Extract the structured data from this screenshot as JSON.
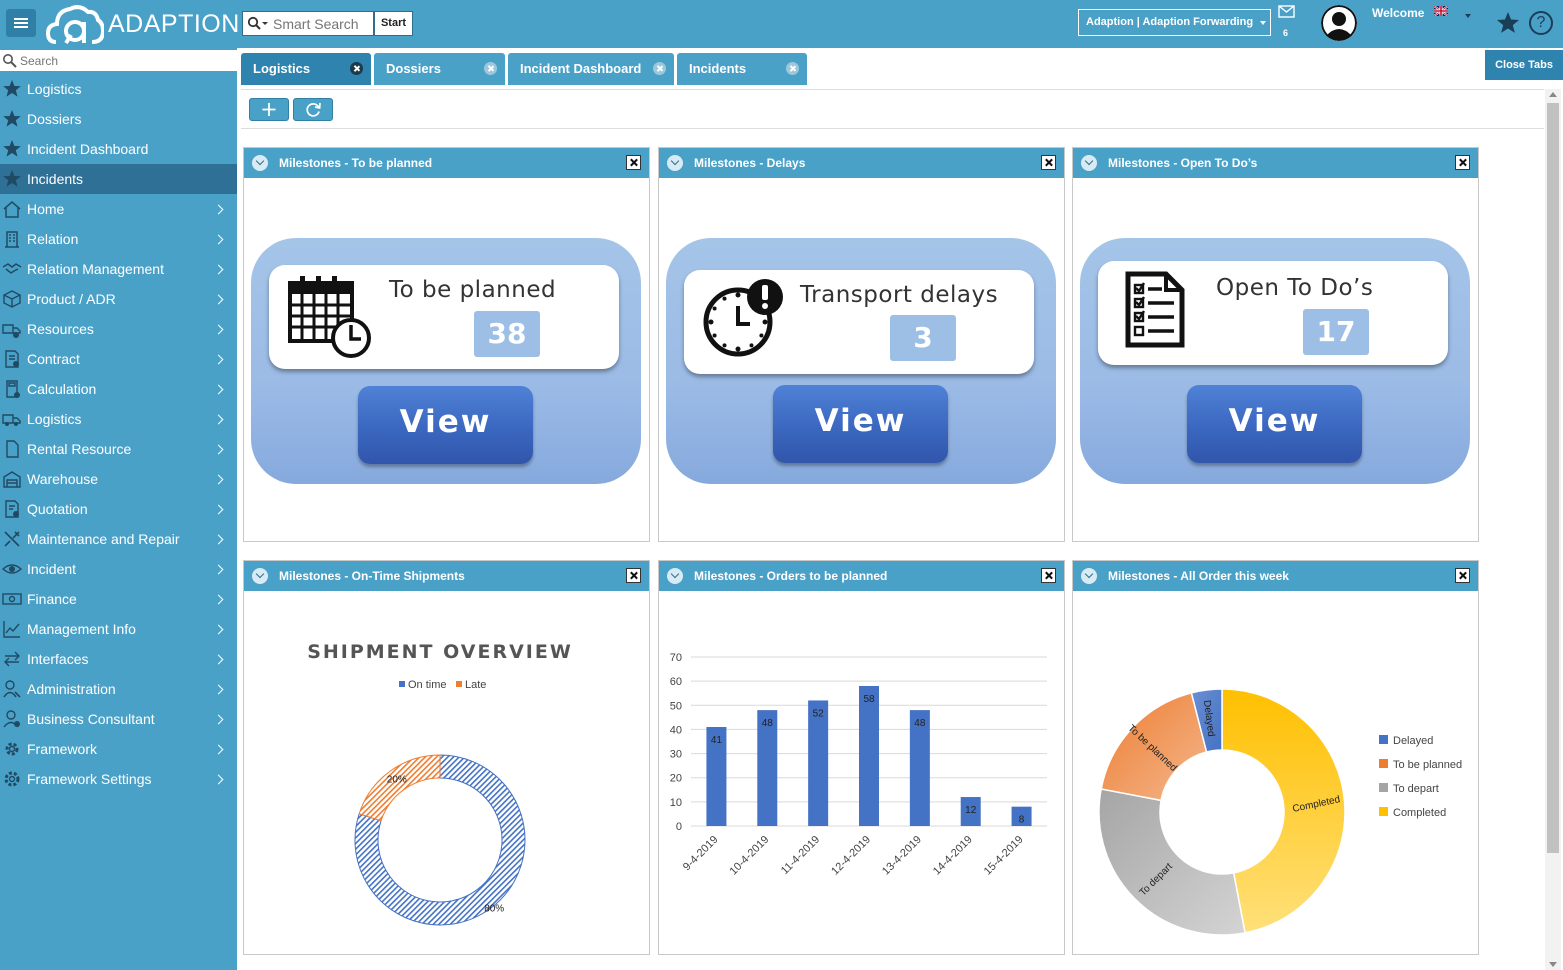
{
  "header": {
    "logo_text": "ADAPTION",
    "search_placeholder": "Smart Search",
    "start_label": "Start",
    "org_label": "Adaption | Adaption Forwarding",
    "mail_count": "6",
    "welcome_label": "Welcome",
    "accent": "#4aa1c8"
  },
  "sidebar": {
    "search_placeholder": "Search",
    "items": [
      {
        "label": "Logistics",
        "icon": "star-icon",
        "chevron": false,
        "active": false
      },
      {
        "label": "Dossiers",
        "icon": "star-icon",
        "chevron": false,
        "active": false
      },
      {
        "label": "Incident Dashboard",
        "icon": "star-icon",
        "chevron": false,
        "active": false
      },
      {
        "label": "Incidents",
        "icon": "star-icon",
        "chevron": false,
        "active": true
      },
      {
        "label": "Home",
        "icon": "home-icon",
        "chevron": true,
        "active": false
      },
      {
        "label": "Relation",
        "icon": "building-icon",
        "chevron": true,
        "active": false
      },
      {
        "label": "Relation Management",
        "icon": "handshake-icon",
        "chevron": true,
        "active": false
      },
      {
        "label": "Product / ADR",
        "icon": "box-icon",
        "chevron": true,
        "active": false
      },
      {
        "label": "Resources",
        "icon": "truck-gear-icon",
        "chevron": true,
        "active": false
      },
      {
        "label": "Contract",
        "icon": "contract-icon",
        "chevron": true,
        "active": false
      },
      {
        "label": "Calculation",
        "icon": "calculator-icon",
        "chevron": true,
        "active": false
      },
      {
        "label": "Logistics",
        "icon": "truck-icon",
        "chevron": true,
        "active": false
      },
      {
        "label": "Rental Resource",
        "icon": "document-icon",
        "chevron": true,
        "active": false
      },
      {
        "label": "Warehouse",
        "icon": "warehouse-icon",
        "chevron": true,
        "active": false
      },
      {
        "label": "Quotation",
        "icon": "quotation-icon",
        "chevron": true,
        "active": false
      },
      {
        "label": "Maintenance and Repair",
        "icon": "tools-icon",
        "chevron": true,
        "active": false
      },
      {
        "label": "Incident",
        "icon": "eye-icon",
        "chevron": true,
        "active": false
      },
      {
        "label": "Finance",
        "icon": "money-icon",
        "chevron": true,
        "active": false
      },
      {
        "label": "Management Info",
        "icon": "line-chart-icon",
        "chevron": true,
        "active": false
      },
      {
        "label": "Interfaces",
        "icon": "arrows-icon",
        "chevron": true,
        "active": false
      },
      {
        "label": "Administration",
        "icon": "wrench-user-icon",
        "chevron": true,
        "active": false
      },
      {
        "label": "Business Consultant",
        "icon": "consultant-icon",
        "chevron": true,
        "active": false
      },
      {
        "label": "Framework",
        "icon": "gear-icon",
        "chevron": true,
        "active": false
      },
      {
        "label": "Framework Settings",
        "icon": "gears-icon",
        "chevron": true,
        "active": false
      }
    ]
  },
  "tabs": [
    {
      "label": "Logistics",
      "active": true
    },
    {
      "label": "Dossiers",
      "active": false
    },
    {
      "label": "Incident Dashboard",
      "active": false
    },
    {
      "label": "Incidents",
      "active": false
    }
  ],
  "close_tabs_label": "Close Tabs",
  "widgets": {
    "planned": {
      "title": "Milestones - To be planned",
      "kpi_title": "To be planned",
      "kpi_value": "38",
      "view_label": "View"
    },
    "delays": {
      "title": "Milestones - Delays",
      "kpi_title": "Transport delays",
      "kpi_value": "3",
      "view_label": "View"
    },
    "todos": {
      "title": "Milestones - Open To Do’s",
      "kpi_title": "Open To Do’s",
      "kpi_value": "17",
      "view_label": "View"
    },
    "ontime": {
      "title": "Milestones - On-Time Shipments"
    },
    "orders": {
      "title": "Milestones - Orders to be planned"
    },
    "allorders": {
      "title": "Milestones - All Order this week"
    }
  },
  "chart_data": [
    {
      "type": "pie",
      "title": "SHIPMENT OVERVIEW",
      "categories": [
        "On time",
        "Late"
      ],
      "values": [
        80,
        20
      ],
      "labels": [
        "80%",
        "20%"
      ],
      "colors": [
        "#4472c4",
        "#ed7d31"
      ],
      "legend": "top"
    },
    {
      "type": "bar",
      "categories": [
        "9-4-2019",
        "10-4-2019",
        "11-4-2019",
        "12-4-2019",
        "13-4-2019",
        "14-4-2019",
        "15-4-2019"
      ],
      "values": [
        41,
        48,
        52,
        58,
        48,
        12,
        8
      ],
      "ylim": [
        0,
        70
      ],
      "yticks": [
        0,
        10,
        20,
        30,
        40,
        50,
        60,
        70
      ],
      "grid": true,
      "color": "#4472c4"
    },
    {
      "type": "pie",
      "categories": [
        "Delayed",
        "To be planned",
        "To depart",
        "Completed"
      ],
      "values": [
        4,
        18,
        31,
        47
      ],
      "colors": [
        "#4472c4",
        "#ed7d31",
        "#a5a5a5",
        "#ffc000"
      ],
      "legend": "right"
    }
  ]
}
